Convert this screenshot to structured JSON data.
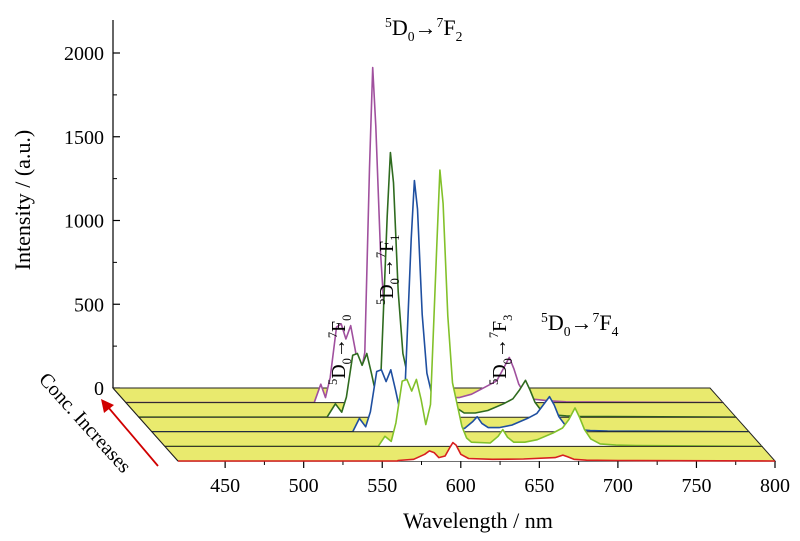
{
  "chart_data": {
    "type": "line",
    "xlabel": "Wavelength / nm",
    "ylabel": "Intensity / (a.u.)",
    "x_ticks": [
      450,
      500,
      550,
      600,
      650,
      700,
      750,
      800
    ],
    "y_ticks": [
      0,
      500,
      1000,
      1500,
      2000
    ],
    "xlim": [
      420,
      800
    ],
    "ylim": [
      0,
      2200
    ],
    "depth_label": "Conc. Increases",
    "plane_color": "#e9ea6e",
    "annotations": [
      {
        "base": "D",
        "sup": "5",
        "sub": "0",
        "arrow": "→",
        "base2": "F",
        "sup2": "7",
        "sub2": "0"
      },
      {
        "base": "D",
        "sup": "5",
        "sub": "0",
        "arrow": "→",
        "base2": "F",
        "sup2": "7",
        "sub2": "1"
      },
      {
        "base": "D",
        "sup": "5",
        "sub": "0",
        "arrow": "→",
        "base2": "F",
        "sup2": "7",
        "sub2": "2"
      },
      {
        "base": "D",
        "sup": "5",
        "sub": "0",
        "arrow": "→",
        "base2": "F",
        "sup2": "7",
        "sub2": "3"
      },
      {
        "base": "D",
        "sup": "5",
        "sub": "0",
        "arrow": "→",
        "base2": "F",
        "sup2": "7",
        "sub2": "4"
      }
    ],
    "series": [
      {
        "color": "#a0509e",
        "values": [
          [
            540,
            5
          ],
          [
            544,
            110
          ],
          [
            547,
            30
          ],
          [
            550,
            150
          ],
          [
            554,
            450
          ],
          [
            557,
            470
          ],
          [
            560,
            380
          ],
          [
            563,
            460
          ],
          [
            566,
            310
          ],
          [
            569,
            150
          ],
          [
            572,
            300
          ],
          [
            575,
            1400
          ],
          [
            577,
            2000
          ],
          [
            579,
            1650
          ],
          [
            582,
            900
          ],
          [
            585,
            450
          ],
          [
            588,
            300
          ],
          [
            591,
            150
          ],
          [
            594,
            60
          ],
          [
            598,
            30
          ],
          [
            610,
            20
          ],
          [
            615,
            60
          ],
          [
            618,
            110
          ],
          [
            621,
            60
          ],
          [
            625,
            30
          ],
          [
            632,
            30
          ],
          [
            640,
            50
          ],
          [
            650,
            100
          ],
          [
            656,
            130
          ],
          [
            660,
            200
          ],
          [
            664,
            270
          ],
          [
            667,
            200
          ],
          [
            670,
            110
          ],
          [
            674,
            50
          ],
          [
            680,
            20
          ],
          [
            690,
            10
          ],
          [
            700,
            5
          ]
        ]
      },
      {
        "color": "#2f6b1f",
        "values": [
          [
            540,
            5
          ],
          [
            545,
            80
          ],
          [
            549,
            30
          ],
          [
            552,
            120
          ],
          [
            556,
            370
          ],
          [
            559,
            380
          ],
          [
            562,
            310
          ],
          [
            565,
            380
          ],
          [
            568,
            260
          ],
          [
            571,
            130
          ],
          [
            574,
            250
          ],
          [
            578,
            1200
          ],
          [
            580,
            1580
          ],
          [
            582,
            1400
          ],
          [
            585,
            750
          ],
          [
            588,
            380
          ],
          [
            591,
            250
          ],
          [
            594,
            120
          ],
          [
            597,
            50
          ],
          [
            600,
            25
          ],
          [
            612,
            20
          ],
          [
            617,
            60
          ],
          [
            620,
            90
          ],
          [
            623,
            50
          ],
          [
            627,
            25
          ],
          [
            634,
            25
          ],
          [
            642,
            40
          ],
          [
            652,
            80
          ],
          [
            658,
            110
          ],
          [
            662,
            160
          ],
          [
            666,
            220
          ],
          [
            669,
            160
          ],
          [
            672,
            90
          ],
          [
            676,
            40
          ],
          [
            682,
            15
          ],
          [
            692,
            8
          ],
          [
            700,
            5
          ]
        ]
      },
      {
        "color": "#1f4fa0",
        "values": [
          [
            548,
            5
          ],
          [
            552,
            80
          ],
          [
            556,
            30
          ],
          [
            559,
            120
          ],
          [
            563,
            360
          ],
          [
            566,
            370
          ],
          [
            569,
            300
          ],
          [
            572,
            370
          ],
          [
            575,
            250
          ],
          [
            578,
            120
          ],
          [
            581,
            240
          ],
          [
            585,
            1150
          ],
          [
            587,
            1500
          ],
          [
            589,
            1330
          ],
          [
            592,
            700
          ],
          [
            595,
            350
          ],
          [
            598,
            230
          ],
          [
            601,
            110
          ],
          [
            604,
            45
          ],
          [
            607,
            20
          ],
          [
            619,
            20
          ],
          [
            624,
            60
          ],
          [
            627,
            90
          ],
          [
            630,
            50
          ],
          [
            634,
            25
          ],
          [
            641,
            25
          ],
          [
            649,
            40
          ],
          [
            659,
            80
          ],
          [
            665,
            110
          ],
          [
            669,
            160
          ],
          [
            673,
            210
          ],
          [
            676,
            160
          ],
          [
            679,
            90
          ],
          [
            683,
            40
          ],
          [
            689,
            15
          ],
          [
            699,
            8
          ],
          [
            710,
            5
          ]
        ]
      },
      {
        "color": "#82c12a",
        "values": [
          [
            556,
            5
          ],
          [
            560,
            60
          ],
          [
            564,
            30
          ],
          [
            567,
            140
          ],
          [
            571,
            390
          ],
          [
            574,
            400
          ],
          [
            577,
            330
          ],
          [
            580,
            400
          ],
          [
            583,
            280
          ],
          [
            586,
            130
          ],
          [
            589,
            250
          ],
          [
            593,
            1200
          ],
          [
            595,
            1650
          ],
          [
            597,
            1450
          ],
          [
            600,
            780
          ],
          [
            603,
            380
          ],
          [
            606,
            250
          ],
          [
            609,
            120
          ],
          [
            612,
            50
          ],
          [
            615,
            25
          ],
          [
            627,
            20
          ],
          [
            632,
            60
          ],
          [
            635,
            100
          ],
          [
            638,
            55
          ],
          [
            642,
            25
          ],
          [
            649,
            25
          ],
          [
            657,
            40
          ],
          [
            667,
            80
          ],
          [
            673,
            110
          ],
          [
            677,
            160
          ],
          [
            681,
            230
          ],
          [
            684,
            170
          ],
          [
            687,
            100
          ],
          [
            691,
            45
          ],
          [
            697,
            15
          ],
          [
            707,
            8
          ],
          [
            720,
            5
          ]
        ]
      },
      {
        "color": "#d82020",
        "values": [
          [
            560,
            3
          ],
          [
            570,
            10
          ],
          [
            577,
            40
          ],
          [
            580,
            60
          ],
          [
            583,
            50
          ],
          [
            586,
            20
          ],
          [
            590,
            30
          ],
          [
            593,
            80
          ],
          [
            595,
            110
          ],
          [
            597,
            95
          ],
          [
            600,
            40
          ],
          [
            605,
            15
          ],
          [
            620,
            10
          ],
          [
            640,
            12
          ],
          [
            660,
            20
          ],
          [
            665,
            35
          ],
          [
            668,
            25
          ],
          [
            672,
            10
          ],
          [
            680,
            5
          ],
          [
            700,
            3
          ]
        ]
      }
    ]
  }
}
